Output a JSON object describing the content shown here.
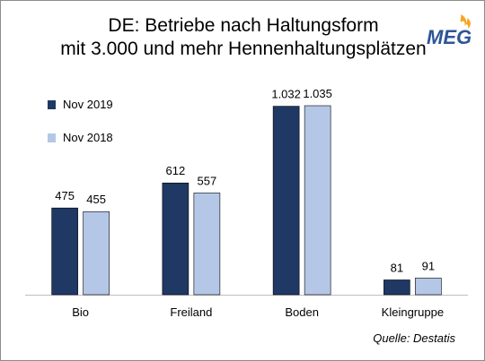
{
  "title_line1": "DE: Betriebe nach Haltungsform",
  "title_line2": "mit 3.000 und mehr Hennenhaltungsplätzen",
  "logo_text": "MEG",
  "source": "Quelle: Destatis",
  "colors": {
    "nov2019": "#1f3864",
    "nov2018": "#b4c7e7",
    "logo_blue": "#2e5597",
    "logo_orange": "#f5a623"
  },
  "chart_data": {
    "type": "bar",
    "title": "DE: Betriebe nach Haltungsform mit 3.000 und mehr Hennenhaltungsplätzen",
    "categories": [
      "Bio",
      "Freiland",
      "Boden",
      "Kleingruppe"
    ],
    "series": [
      {
        "name": "Nov 2019",
        "values": [
          475,
          612,
          1032,
          81
        ],
        "labels": [
          "475",
          "612",
          "1.032",
          "81"
        ]
      },
      {
        "name": "Nov 2018",
        "values": [
          455,
          557,
          1035,
          91
        ],
        "labels": [
          "455",
          "557",
          "1.035",
          "91"
        ]
      }
    ],
    "ylim": [
      0,
      1100
    ],
    "grid": false,
    "legend": "top-left"
  }
}
